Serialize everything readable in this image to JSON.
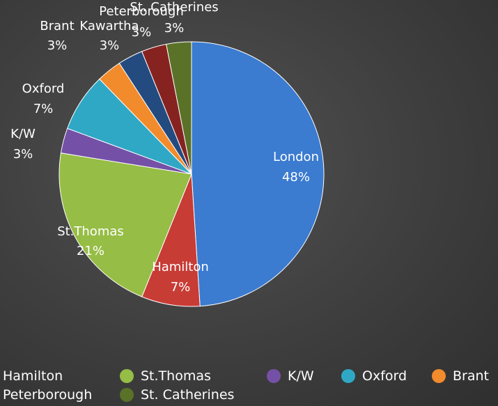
{
  "chart_data": {
    "type": "pie",
    "title": "",
    "categories": [
      "London",
      "Hamilton",
      "St.Thomas",
      "K/W",
      "Oxford",
      "Brant",
      "Kawartha",
      "Peterborough",
      "St. Catherines"
    ],
    "values": [
      48,
      7,
      21,
      3,
      7,
      3,
      3,
      3,
      3
    ],
    "labels": [
      "48%",
      "7%",
      "21%",
      "3%",
      "7%",
      "3%",
      "3%",
      "3%",
      "3%"
    ],
    "colors": [
      "#3b7bd0",
      "#c83c36",
      "#96bd45",
      "#7451a7",
      "#2fa8c5",
      "#f28b2c",
      "#244b7f",
      "#862321",
      "#5a7227"
    ],
    "legend_placement": "bottom"
  },
  "legend": {
    "row1": [
      "Hamilton",
      "St.Thomas",
      "K/W",
      "Oxford",
      "Brant"
    ],
    "row2": [
      "Peterborough",
      "St. Catherines"
    ]
  }
}
